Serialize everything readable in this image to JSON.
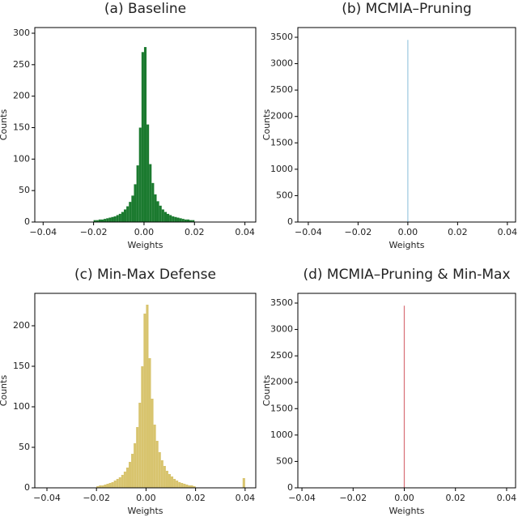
{
  "chart_data": [
    {
      "type": "histogram",
      "title": "(a) Baseline",
      "x_label": "Weights",
      "y_label": "Counts",
      "color": "#1b7a2f",
      "bins": [
        -0.02,
        -0.019,
        -0.018,
        -0.017,
        -0.016,
        -0.015,
        -0.014,
        -0.013,
        -0.012,
        -0.011,
        -0.01,
        -0.009,
        -0.008,
        -0.007,
        -0.006,
        -0.005,
        -0.004,
        -0.003,
        -0.002,
        -0.001,
        0,
        0.001,
        0.002,
        0.003,
        0.004,
        0.005,
        0.006,
        0.007,
        0.008,
        0.009,
        0.01,
        0.011,
        0.012,
        0.013,
        0.014,
        0.015,
        0.016,
        0.017,
        0.018,
        0.019,
        0.02
      ],
      "counts": [
        3,
        3,
        4,
        4,
        5,
        6,
        7,
        8,
        9,
        11,
        13,
        16,
        20,
        25,
        32,
        42,
        60,
        90,
        150,
        270,
        278,
        155,
        92,
        62,
        44,
        33,
        26,
        20,
        16,
        13,
        11,
        9,
        8,
        7,
        6,
        5,
        4,
        4,
        3,
        3
      ],
      "xlim": [
        -0.0433,
        0.0443
      ],
      "ylim": [
        0,
        309
      ],
      "xticks": [
        {
          "value": -0.04,
          "label": "−0.04"
        },
        {
          "value": -0.02,
          "label": "−0.02"
        },
        {
          "value": 0,
          "label": "0.00"
        },
        {
          "value": 0.02,
          "label": "0.02"
        },
        {
          "value": 0.04,
          "label": "0.04"
        }
      ],
      "yticks": [
        0,
        50,
        100,
        150,
        200,
        250,
        300
      ]
    },
    {
      "type": "histogram",
      "title": "(b) MCMIA–Pruning",
      "x_label": "Weights",
      "y_label": "Counts",
      "color": "#9ecae1",
      "bins": [
        -0.0002,
        0.0002
      ],
      "counts": [
        3450
      ],
      "xlim": [
        -0.0442,
        0.0433
      ],
      "ylim": [
        0,
        3684
      ],
      "xticks": [
        {
          "value": -0.04,
          "label": "−0.04"
        },
        {
          "value": -0.02,
          "label": "−0.02"
        },
        {
          "value": 0,
          "label": "0.00"
        },
        {
          "value": 0.02,
          "label": "0.02"
        },
        {
          "value": 0.04,
          "label": "0.04"
        }
      ],
      "yticks": [
        0,
        500,
        1000,
        1500,
        2000,
        2500,
        3000,
        3500
      ]
    },
    {
      "type": "histogram",
      "title": "(c) Min-Max Defense",
      "x_label": "Weights",
      "y_label": "Counts",
      "color": "#d8c46e",
      "bins": [
        -0.02,
        -0.019,
        -0.018,
        -0.017,
        -0.016,
        -0.015,
        -0.014,
        -0.013,
        -0.012,
        -0.011,
        -0.01,
        -0.009,
        -0.008,
        -0.007,
        -0.006,
        -0.005,
        -0.004,
        -0.003,
        -0.002,
        -0.001,
        0,
        0.001,
        0.002,
        0.003,
        0.004,
        0.005,
        0.006,
        0.007,
        0.008,
        0.009,
        0.01,
        0.011,
        0.012,
        0.013,
        0.014,
        0.015,
        0.016,
        0.017,
        0.018,
        0.019,
        0.02,
        0.021,
        0.022,
        0.023,
        0.024,
        0.025,
        0.026,
        0.027,
        0.028,
        0.029,
        0.03,
        0.031,
        0.032,
        0.033,
        0.034,
        0.035,
        0.036,
        0.037,
        0.038,
        0.039,
        0.04
      ],
      "counts": [
        2,
        3,
        3,
        4,
        5,
        6,
        7,
        9,
        11,
        13,
        16,
        20,
        25,
        32,
        42,
        55,
        75,
        105,
        150,
        215,
        226,
        160,
        110,
        78,
        58,
        44,
        34,
        27,
        21,
        17,
        14,
        11,
        9,
        7,
        6,
        5,
        4,
        3,
        3,
        2,
        0,
        0,
        0,
        0,
        0,
        0,
        0,
        0,
        0,
        0,
        0,
        0,
        0,
        0,
        0,
        0,
        0,
        0,
        0,
        12
      ],
      "xlim": [
        -0.0449,
        0.0443
      ],
      "ylim": [
        0,
        240
      ],
      "xticks": [
        {
          "value": -0.04,
          "label": "−0.04"
        },
        {
          "value": -0.02,
          "label": "−0.02"
        },
        {
          "value": 0,
          "label": "0.00"
        },
        {
          "value": 0.02,
          "label": "0.02"
        },
        {
          "value": 0.04,
          "label": "0.04"
        }
      ],
      "yticks": [
        0,
        50,
        100,
        150,
        200
      ]
    },
    {
      "type": "histogram",
      "title": "(d) MCMIA–Pruning & Min-Max",
      "x_label": "Weights",
      "y_label": "Counts",
      "color": "#d9737a",
      "bins": [
        -0.0002,
        0.0002
      ],
      "counts": [
        3450
      ],
      "xlim": [
        -0.0416,
        0.0435
      ],
      "ylim": [
        0,
        3684
      ],
      "xticks": [
        {
          "value": -0.04,
          "label": "−0.04"
        },
        {
          "value": -0.02,
          "label": "−0.02"
        },
        {
          "value": 0,
          "label": "0.00"
        },
        {
          "value": 0.02,
          "label": "0.02"
        },
        {
          "value": 0.04,
          "label": "0.04"
        }
      ],
      "yticks": [
        0,
        500,
        1000,
        1500,
        2000,
        2500,
        3000,
        3500
      ]
    }
  ]
}
